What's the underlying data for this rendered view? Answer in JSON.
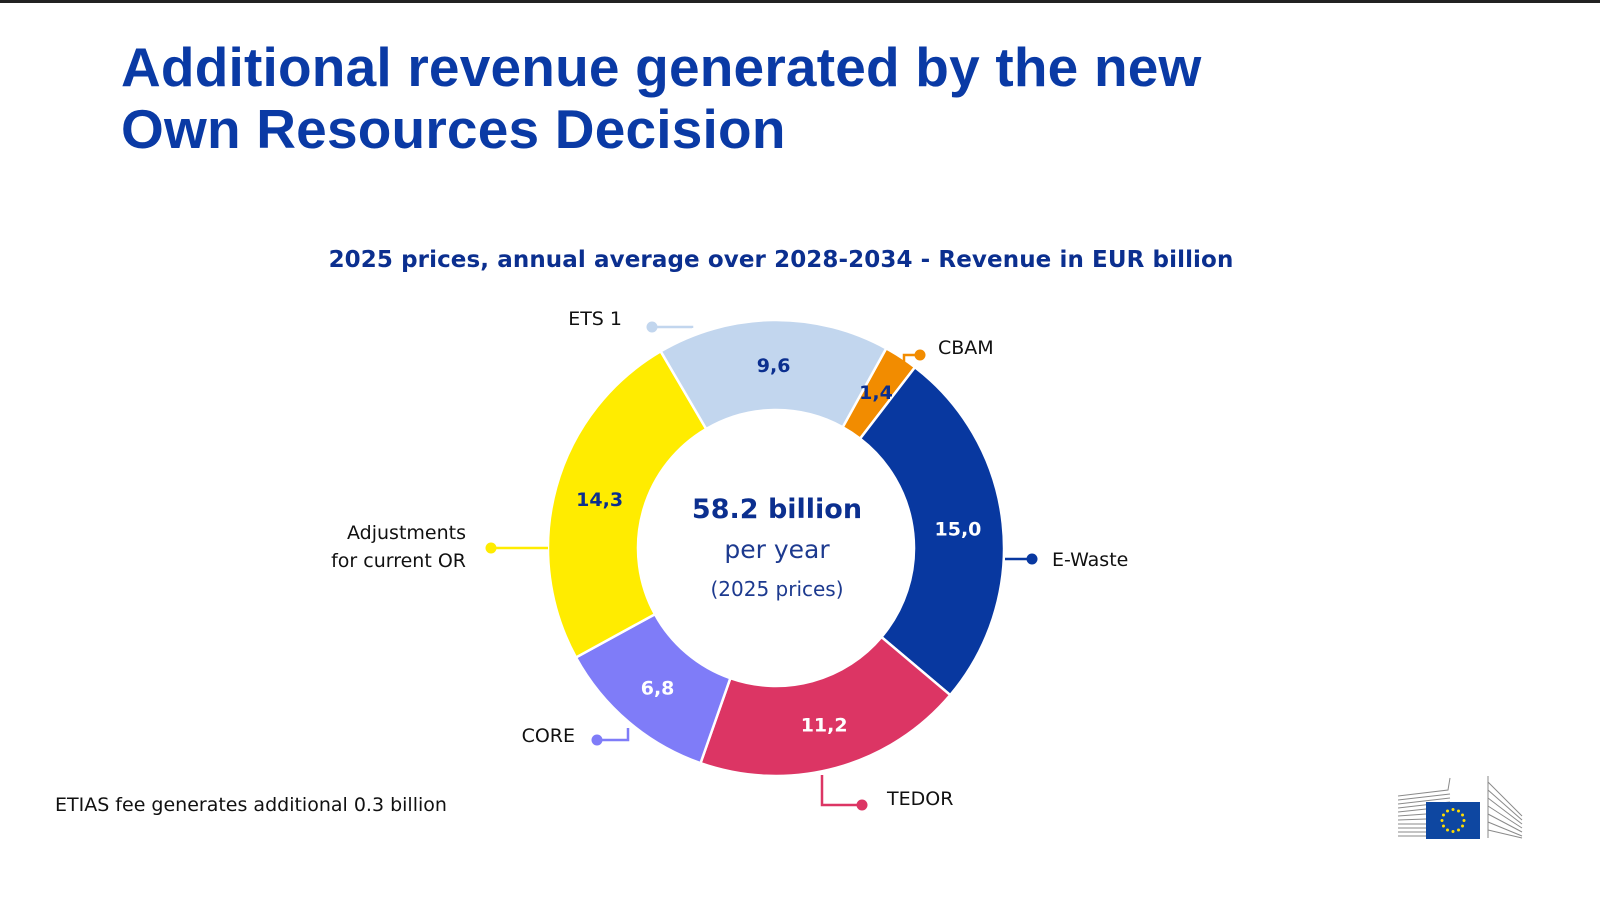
{
  "title": {
    "line1": "Additional revenue generated by the new",
    "line2": "Own Resources Decision"
  },
  "subtitle": "2025 prices, annual average over 2028-2034 - Revenue in EUR billion",
  "center": {
    "main": "58.2 billion",
    "sub": "per year",
    "sub2": "(2025 prices)"
  },
  "footnote": "ETIAS fee generates additional 0.3 billion",
  "logo": {
    "icon": "european-commission-logo-icon",
    "flag_color": "#0e47a1",
    "star_color": "#ffdd00"
  },
  "chart_data": {
    "type": "pie",
    "variant": "donut",
    "title": "2025 prices, annual average over 2028-2034 - Revenue in EUR billion",
    "unit": "EUR billion",
    "center_label": "58.2 billion per year (2025 prices)",
    "start_angle_deg": 28.9,
    "direction": "clockwise",
    "slices": [
      {
        "name": "CBAM",
        "value": 1.4,
        "label": "1,4",
        "color": "#f28c00",
        "value_color": "#0b2f8f",
        "legend_side": "right"
      },
      {
        "name": "E-Waste",
        "value": 15.0,
        "label": "15,0",
        "color": "#0838a0",
        "value_color": "#ffffff",
        "legend_side": "right"
      },
      {
        "name": "TEDOR",
        "value": 11.2,
        "label": "11,2",
        "color": "#dc3564",
        "value_color": "#ffffff",
        "legend_side": "bottom"
      },
      {
        "name": "CORE",
        "value": 6.8,
        "label": "6,8",
        "color": "#7f7cf8",
        "value_color": "#ffffff",
        "legend_side": "left"
      },
      {
        "name": "Adjustments for current OR",
        "value": 14.3,
        "label": "14,3",
        "color": "#ffec00",
        "value_color": "#0b2f8f",
        "legend_side": "left"
      },
      {
        "name": "ETS 1",
        "value": 9.6,
        "label": "9,6",
        "color": "#c2d6ee",
        "value_color": "#0b2f8f",
        "legend_side": "top"
      }
    ]
  }
}
